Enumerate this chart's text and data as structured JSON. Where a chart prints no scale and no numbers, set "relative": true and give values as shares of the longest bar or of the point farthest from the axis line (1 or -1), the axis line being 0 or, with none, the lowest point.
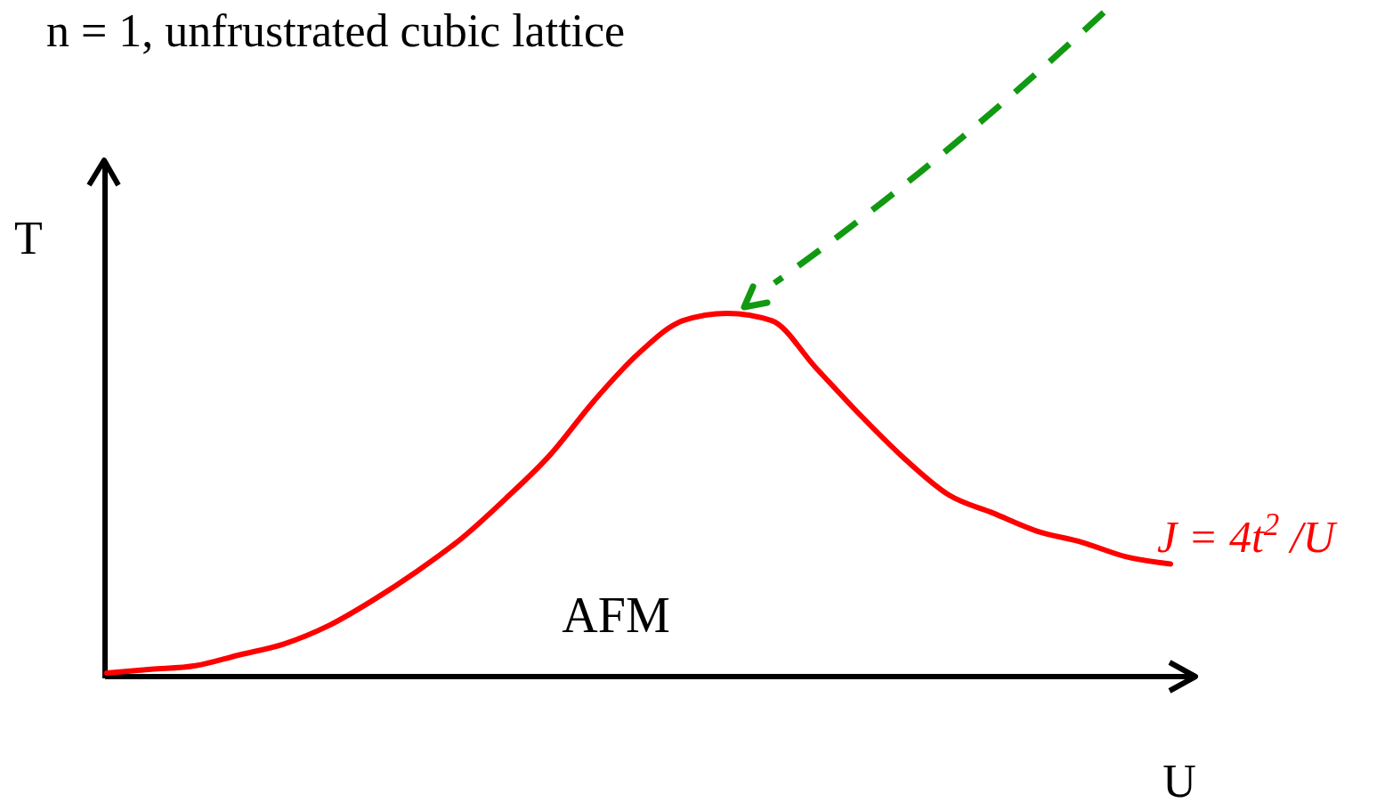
{
  "chart_data": {
    "type": "line",
    "relative": true,
    "title": "n = 1, unfrustrated cubic lattice",
    "xlabel": "U",
    "ylabel": "T",
    "categories": [
      null,
      null,
      null,
      null,
      null,
      null,
      null,
      null,
      null,
      null,
      null,
      null,
      null,
      null,
      null,
      null,
      null,
      null,
      null,
      null,
      null,
      null,
      null,
      null,
      null
    ],
    "series": [
      {
        "name": "J = 4t$^{2}$ /U",
        "color": "#ff0000",
        "values": [
          0.01,
          0.02,
          0.03,
          0.06,
          0.09,
          0.14,
          0.21,
          0.29,
          0.38,
          0.49,
          0.61,
          0.76,
          0.89,
          0.98,
          1.0,
          0.98,
          0.85,
          0.72,
          0.6,
          0.5,
          0.45,
          0.4,
          0.37,
          0.33,
          0.31
        ]
      }
    ],
    "annotations": [
      "AFM"
    ]
  }
}
